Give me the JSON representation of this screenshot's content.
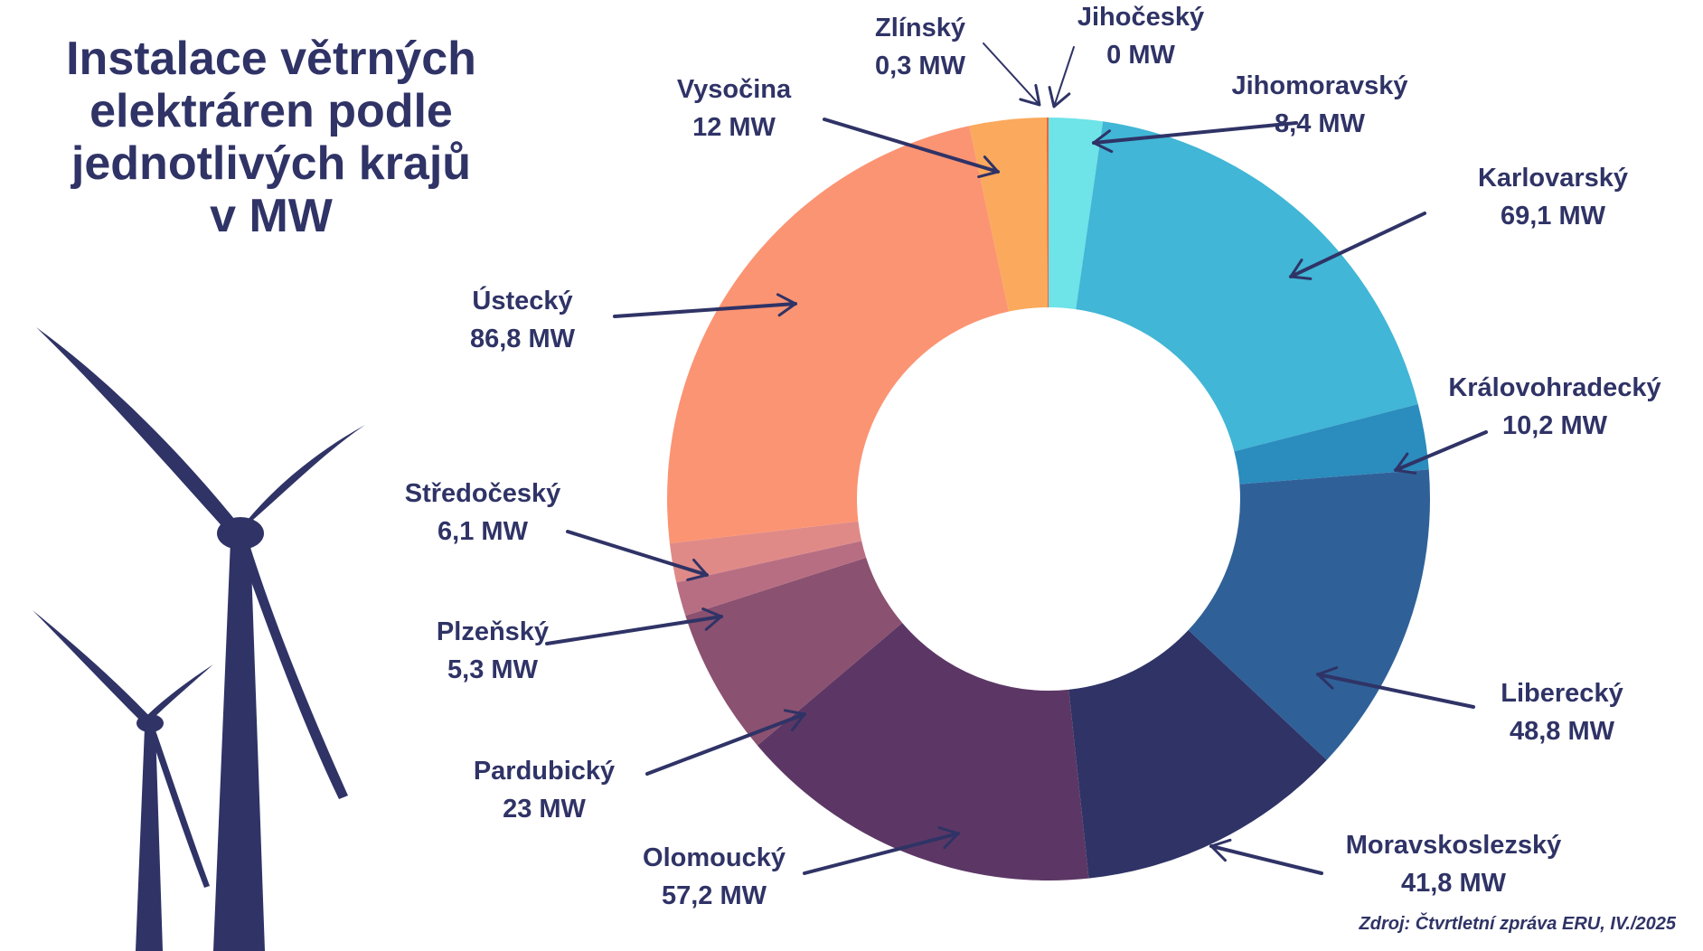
{
  "title": "Instalace větrných\nelektráren podle\njednotlivých krajů\nv MW",
  "source": "Zdroj: Čtvrtletní zpráva ERU, IV./2025",
  "colors": {
    "text": "#2f3366",
    "turbine": "#2f3366"
  },
  "chart_data": {
    "type": "pie",
    "variant": "donut",
    "unit": "MW",
    "slices": [
      {
        "name": "Jihočeský",
        "value": 0,
        "value_label": "0 MW",
        "color": "#e2533c"
      },
      {
        "name": "Jihomoravský",
        "value": 8.4,
        "value_label": "8,4 MW",
        "color": "#6ee3e8"
      },
      {
        "name": "Karlovarský",
        "value": 69.1,
        "value_label": "69,1 MW",
        "color": "#41b6d6"
      },
      {
        "name": "Královohradecký",
        "value": 10.2,
        "value_label": "10,2 MW",
        "color": "#2b8cbe"
      },
      {
        "name": "Liberecký",
        "value": 48.8,
        "value_label": "48,8 MW",
        "color": "#2f6198"
      },
      {
        "name": "Moravskoslezský",
        "value": 41.8,
        "value_label": "41,8 MW",
        "color": "#2f3366"
      },
      {
        "name": "Olomoucký",
        "value": 57.2,
        "value_label": "57,2 MW",
        "color": "#5c3765"
      },
      {
        "name": "Pardubický",
        "value": 23,
        "value_label": "23 MW",
        "color": "#8b5170"
      },
      {
        "name": "Plzeňský",
        "value": 5.3,
        "value_label": "5,3 MW",
        "color": "#b86e82"
      },
      {
        "name": "Středočeský",
        "value": 6.1,
        "value_label": "6,1 MW",
        "color": "#e08a88"
      },
      {
        "name": "Ústecký",
        "value": 86.8,
        "value_label": "86,8 MW",
        "color": "#fb9473"
      },
      {
        "name": "Vysočina",
        "value": 12,
        "value_label": "12 MW",
        "color": "#fba95c"
      },
      {
        "name": "Zlínský",
        "value": 0.3,
        "value_label": "0,3 MW",
        "color": "#e4683e"
      }
    ]
  }
}
